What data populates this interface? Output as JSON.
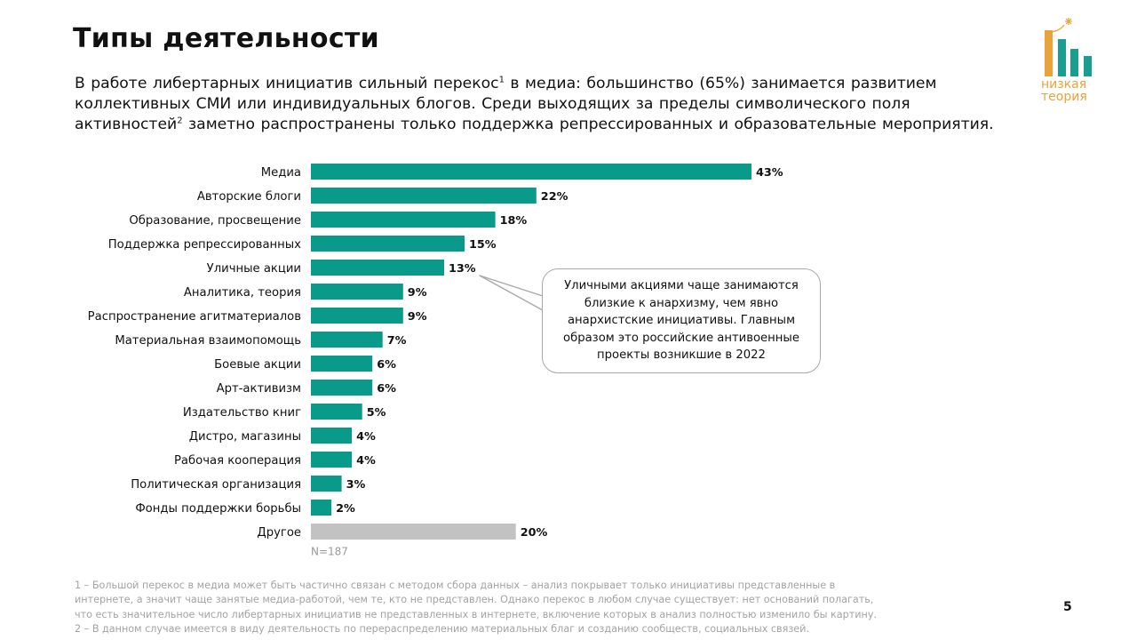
{
  "title": "Типы деятельности",
  "lead": {
    "line1_before": "В работе либертарных инициатив сильный перекос",
    "line1_sup": "1",
    "line1_after": " в медиа: большинство (65%) занимается развитием",
    "line2": "коллективных СМИ или индивидуальных блогов. Среди выходящих за пределы символического поля",
    "line3_before": "активностей",
    "line3_sup": "2",
    "line3_after": " заметно распространены  только поддержка репрессированных  и образовательные  мероприятия."
  },
  "logo": {
    "line1": "низкая",
    "line2": "теория",
    "colors": {
      "orange": "#e8a33a",
      "teal": "#1a9e8f"
    }
  },
  "chart_data": {
    "type": "bar",
    "orientation": "horizontal",
    "categories": [
      "Медиа",
      "Авторские блоги",
      "Образование, просвещение",
      "Поддержка репрессированных",
      "Уличные акции",
      "Аналитика, теория",
      "Распространение агитматериалов",
      "Материальная взаимопомощь",
      "Боевые акции",
      "Арт-активизм",
      "Издательство книг",
      "Дистро, магазины",
      "Рабочая кооперация",
      "Политическая организация",
      "Фонды поддержки борьбы",
      "Другое"
    ],
    "values": [
      43,
      22,
      18,
      15,
      13,
      9,
      9,
      7,
      6,
      6,
      5,
      4,
      4,
      3,
      2,
      20
    ],
    "value_labels": [
      "43%",
      "22%",
      "18%",
      "15%",
      "13%",
      "9%",
      "9%",
      "7%",
      "6%",
      "6%",
      "5%",
      "4%",
      "4%",
      "3%",
      "2%",
      "20%"
    ],
    "colors": [
      "#099a8a",
      "#099a8a",
      "#099a8a",
      "#099a8a",
      "#099a8a",
      "#099a8a",
      "#099a8a",
      "#099a8a",
      "#099a8a",
      "#099a8a",
      "#099a8a",
      "#099a8a",
      "#099a8a",
      "#099a8a",
      "#099a8a",
      "#c2c2c2"
    ],
    "xlim": [
      0,
      43
    ],
    "grid": false,
    "sample_note": "N=187",
    "annotation": {
      "text": "Уличными акциями чаще занимаются близкие к анархизму, чем явно анархистские инициативы. Главным образом это российские антивоенные проекты возникшие в 2022",
      "category": "Уличные акции"
    }
  },
  "footnotes": {
    "line1": "1 – Большой перекос в медиа может быть частично связан с методом сбора данных – анализ покрывает только инициативы представленные в",
    "line2": "интернете, а значит чаще занятые медиа-работой, чем те, кто не представлен. Однако перекос в любом случае существует: нет оснований полагать,",
    "line3": "что есть значительное число либертарных инициатив не представленных в интернете, включение которых в анализ полностью изменило бы картину.",
    "line4": "2 –  В данном случае  имеется в виду деятельность по перераспределению материальных благ и созданию сообществ, социальных связей."
  },
  "page_number": "5"
}
